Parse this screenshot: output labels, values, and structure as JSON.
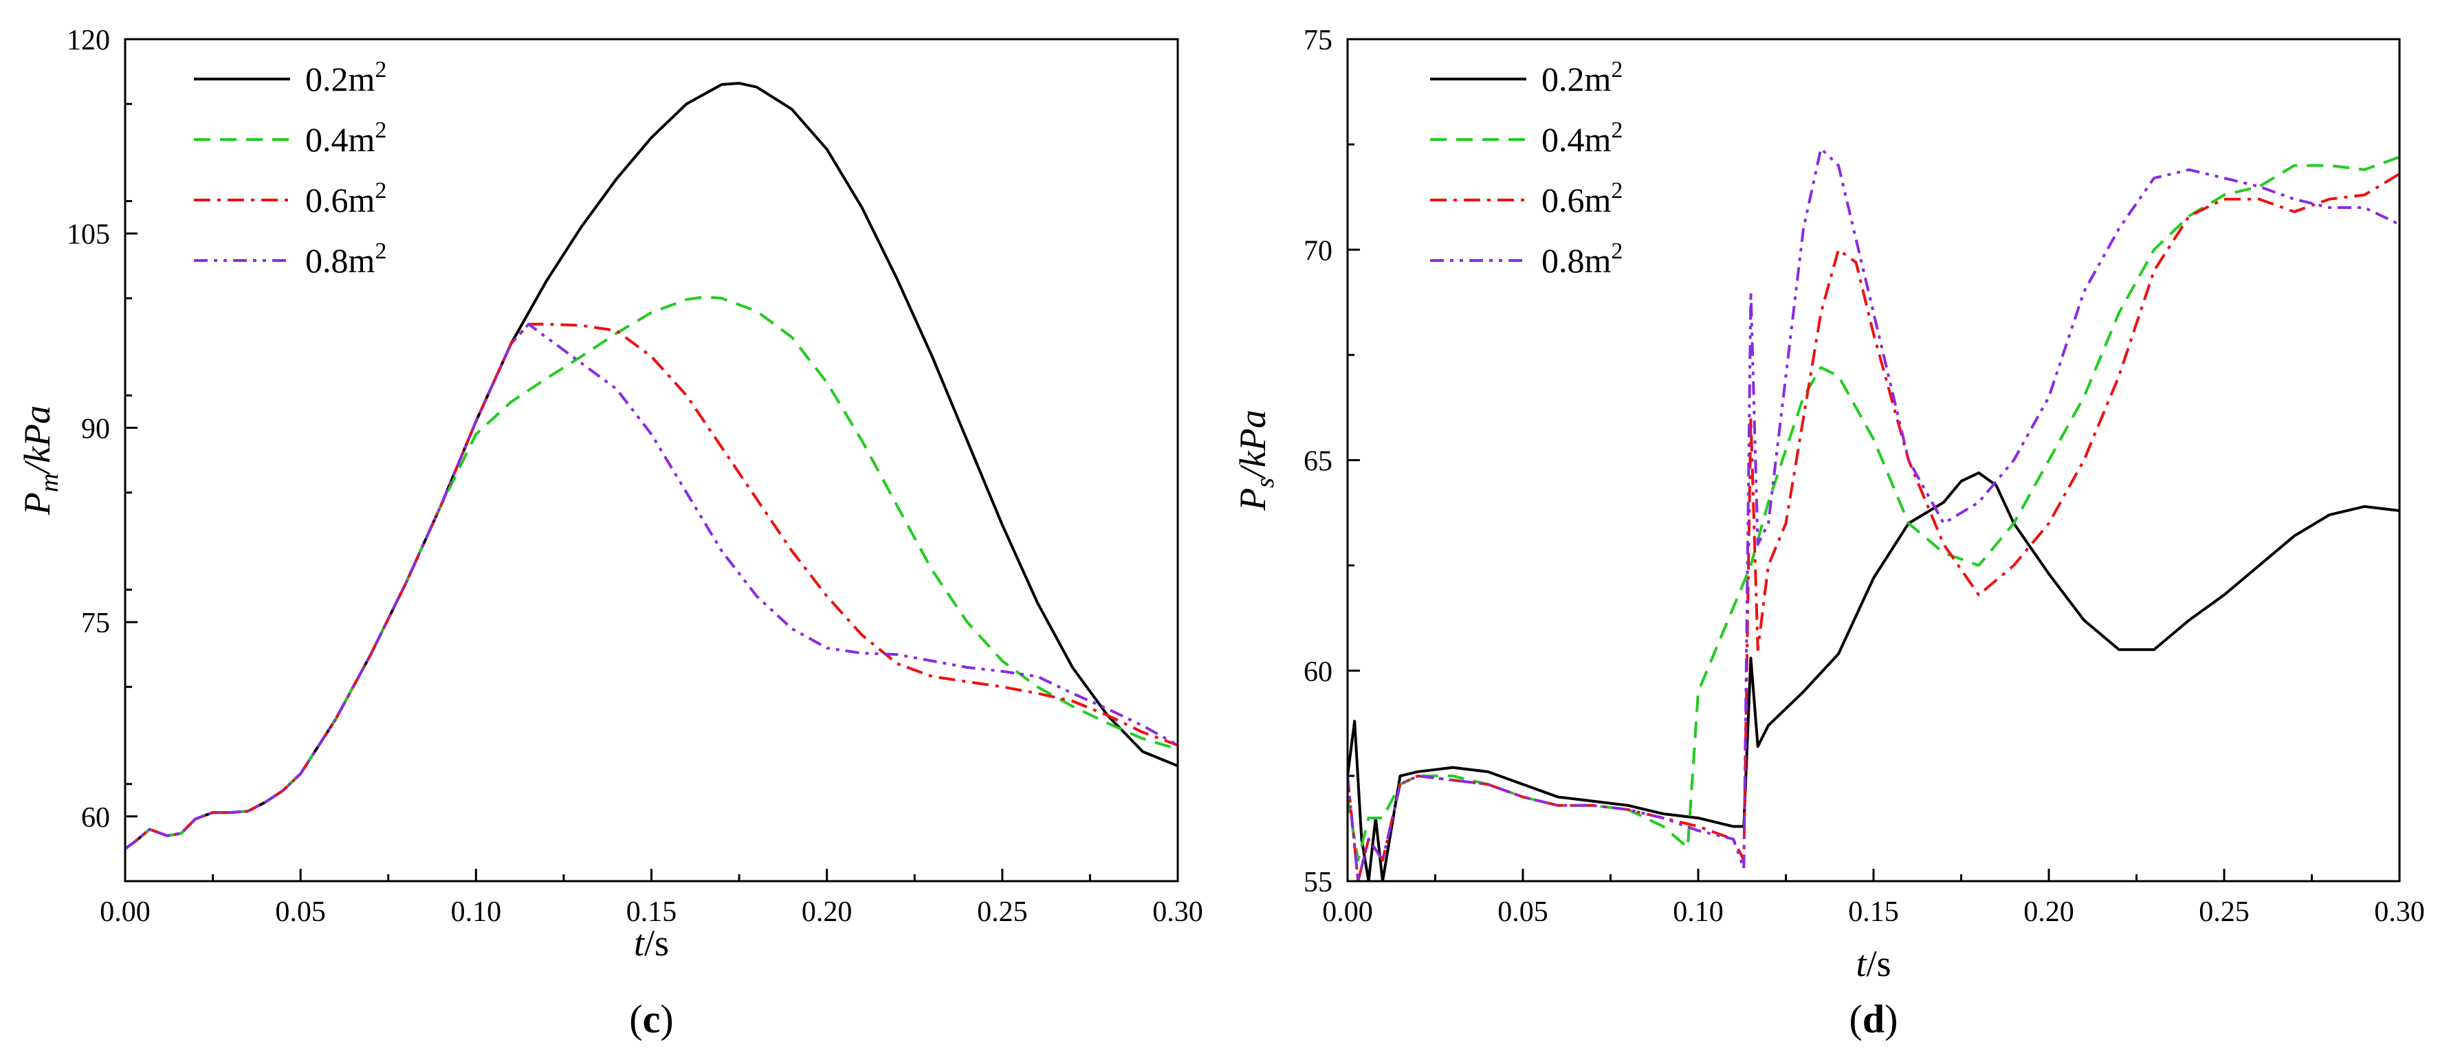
{
  "chart_data": [
    {
      "panel": "(c)",
      "panel_letter": "c",
      "type": "line",
      "xlabel_var": "t",
      "xlabel_unit": "/s",
      "ylabel_main": "P",
      "ylabel_sub": "m",
      "ylabel_unit": "/kPa",
      "xlim": [
        0,
        0.3
      ],
      "ylim": [
        55,
        120
      ],
      "xticks": [
        0.0,
        0.05,
        0.1,
        0.15,
        0.2,
        0.25,
        0.3
      ],
      "xtick_labels": [
        "0.00",
        "0.05",
        "0.10",
        "0.15",
        "0.20",
        "0.25",
        "0.30"
      ],
      "yticks": [
        60,
        75,
        90,
        105,
        120
      ],
      "ytick_labels": [
        "60",
        "75",
        "90",
        "105",
        "120"
      ],
      "legend": "top-left",
      "series": [
        {
          "name": "0.2m",
          "sup": "2",
          "color": "#000000",
          "dash": "solid",
          "x": [
            0,
            0.003,
            0.007,
            0.012,
            0.016,
            0.02,
            0.025,
            0.03,
            0.035,
            0.04,
            0.045,
            0.05,
            0.06,
            0.07,
            0.08,
            0.09,
            0.1,
            0.11,
            0.12,
            0.13,
            0.14,
            0.15,
            0.16,
            0.17,
            0.175,
            0.18,
            0.19,
            0.2,
            0.21,
            0.22,
            0.23,
            0.24,
            0.25,
            0.26,
            0.27,
            0.28,
            0.29,
            0.3
          ],
          "y": [
            57.5,
            58.1,
            59.0,
            58.5,
            58.7,
            59.8,
            60.3,
            60.3,
            60.4,
            61.1,
            62.0,
            63.3,
            67.5,
            72.5,
            78.0,
            84.0,
            90.5,
            96.5,
            101.3,
            105.5,
            109.2,
            112.4,
            115.0,
            116.5,
            116.6,
            116.3,
            114.6,
            111.5,
            107.0,
            101.5,
            95.5,
            89.0,
            82.5,
            76.5,
            71.5,
            67.8,
            65.0,
            63.9
          ]
        },
        {
          "name": "0.4m",
          "sup": "2",
          "color": "#22cc22",
          "dash": "dashed",
          "x": [
            0,
            0.003,
            0.007,
            0.012,
            0.016,
            0.02,
            0.025,
            0.03,
            0.035,
            0.04,
            0.045,
            0.05,
            0.06,
            0.07,
            0.08,
            0.09,
            0.1,
            0.11,
            0.12,
            0.13,
            0.14,
            0.15,
            0.16,
            0.165,
            0.17,
            0.18,
            0.19,
            0.2,
            0.21,
            0.22,
            0.23,
            0.24,
            0.25,
            0.26,
            0.27,
            0.28,
            0.29,
            0.3
          ],
          "y": [
            57.5,
            58.1,
            59.0,
            58.5,
            58.7,
            59.8,
            60.3,
            60.3,
            60.4,
            61.1,
            62.0,
            63.3,
            67.5,
            72.5,
            78.0,
            84.0,
            89.5,
            92.0,
            93.8,
            95.5,
            97.3,
            98.9,
            99.9,
            100.1,
            100.0,
            99.0,
            97.0,
            93.5,
            89.0,
            84.0,
            79.0,
            75.0,
            72.0,
            70.0,
            68.5,
            67.2,
            66.0,
            65.2
          ]
        },
        {
          "name": "0.6m",
          "sup": "2",
          "color": "#ee1111",
          "dash": "dashdot",
          "x": [
            0,
            0.003,
            0.007,
            0.012,
            0.016,
            0.02,
            0.025,
            0.03,
            0.035,
            0.04,
            0.045,
            0.05,
            0.06,
            0.07,
            0.08,
            0.09,
            0.1,
            0.11,
            0.115,
            0.12,
            0.13,
            0.14,
            0.15,
            0.16,
            0.17,
            0.18,
            0.19,
            0.2,
            0.21,
            0.22,
            0.23,
            0.24,
            0.25,
            0.26,
            0.27,
            0.28,
            0.29,
            0.3
          ],
          "y": [
            57.5,
            58.1,
            59.0,
            58.5,
            58.7,
            59.8,
            60.3,
            60.3,
            60.4,
            61.1,
            62.0,
            63.3,
            67.5,
            72.5,
            78.0,
            84.0,
            90.5,
            96.5,
            98.0,
            98.0,
            97.9,
            97.5,
            95.5,
            92.5,
            88.5,
            84.5,
            80.5,
            77.0,
            74.0,
            71.8,
            70.8,
            70.4,
            70.0,
            69.5,
            68.9,
            67.8,
            66.5,
            65.5
          ]
        },
        {
          "name": "0.8m",
          "sup": "2",
          "color": "#8a2be2",
          "dash": "dashdotdot",
          "x": [
            0,
            0.003,
            0.007,
            0.012,
            0.016,
            0.02,
            0.025,
            0.03,
            0.035,
            0.04,
            0.045,
            0.05,
            0.06,
            0.07,
            0.08,
            0.09,
            0.1,
            0.11,
            0.115,
            0.12,
            0.13,
            0.14,
            0.15,
            0.16,
            0.17,
            0.18,
            0.19,
            0.2,
            0.21,
            0.22,
            0.23,
            0.24,
            0.25,
            0.26,
            0.27,
            0.28,
            0.29,
            0.3
          ],
          "y": [
            57.5,
            58.1,
            59.0,
            58.5,
            58.7,
            59.8,
            60.3,
            60.3,
            60.4,
            61.1,
            62.0,
            63.3,
            67.5,
            72.5,
            78.0,
            84.0,
            90.5,
            96.5,
            98.0,
            97.0,
            95.0,
            93.0,
            89.5,
            85.0,
            80.5,
            77.0,
            74.5,
            73.0,
            72.6,
            72.5,
            72.0,
            71.5,
            71.2,
            70.8,
            69.5,
            68.3,
            67.0,
            65.5
          ]
        }
      ]
    },
    {
      "panel": "(d)",
      "panel_letter": "d",
      "type": "line",
      "xlabel_var": "t",
      "xlabel_unit": "/s",
      "ylabel_main": "P",
      "ylabel_sub": "s",
      "ylabel_unit": "/kPa",
      "xlim": [
        0,
        0.3
      ],
      "ylim": [
        55,
        75
      ],
      "xticks": [
        0.0,
        0.05,
        0.1,
        0.15,
        0.2,
        0.25,
        0.3
      ],
      "xtick_labels": [
        "0.00",
        "0.05",
        "0.10",
        "0.15",
        "0.20",
        "0.25",
        "0.30"
      ],
      "yticks": [
        55,
        60,
        65,
        70,
        75
      ],
      "ytick_labels": [
        "55",
        "60",
        "65",
        "70",
        "75"
      ],
      "legend": "top-left",
      "series": [
        {
          "name": "0.2m",
          "sup": "2",
          "color": "#000000",
          "dash": "solid",
          "x": [
            0,
            0.002,
            0.004,
            0.006,
            0.008,
            0.01,
            0.012,
            0.015,
            0.02,
            0.03,
            0.04,
            0.05,
            0.06,
            0.07,
            0.08,
            0.09,
            0.1,
            0.11,
            0.113,
            0.115,
            0.117,
            0.12,
            0.125,
            0.13,
            0.14,
            0.15,
            0.16,
            0.17,
            0.175,
            0.18,
            0.185,
            0.19,
            0.2,
            0.21,
            0.22,
            0.23,
            0.24,
            0.25,
            0.26,
            0.27,
            0.28,
            0.29,
            0.3
          ],
          "y": [
            57.5,
            58.8,
            56.0,
            55.0,
            56.5,
            55.0,
            56.0,
            57.5,
            57.6,
            57.7,
            57.6,
            57.3,
            57.0,
            56.9,
            56.8,
            56.6,
            56.5,
            56.3,
            56.3,
            60.3,
            58.2,
            58.7,
            59.1,
            59.5,
            60.4,
            62.2,
            63.5,
            64.0,
            64.5,
            64.7,
            64.4,
            63.5,
            62.3,
            61.2,
            60.5,
            60.5,
            61.2,
            61.8,
            62.5,
            63.2,
            63.7,
            63.9,
            63.8
          ]
        },
        {
          "name": "0.4m",
          "sup": "2",
          "color": "#22cc22",
          "dash": "dashed",
          "x": [
            0,
            0.003,
            0.006,
            0.01,
            0.015,
            0.02,
            0.03,
            0.04,
            0.05,
            0.06,
            0.07,
            0.08,
            0.09,
            0.097,
            0.1,
            0.105,
            0.11,
            0.115,
            0.12,
            0.13,
            0.135,
            0.14,
            0.15,
            0.16,
            0.17,
            0.18,
            0.19,
            0.2,
            0.21,
            0.22,
            0.23,
            0.24,
            0.25,
            0.26,
            0.27,
            0.28,
            0.29,
            0.3
          ],
          "y": [
            57.0,
            55.5,
            56.5,
            56.5,
            57.3,
            57.5,
            57.5,
            57.3,
            57.0,
            56.8,
            56.8,
            56.7,
            56.3,
            55.8,
            59.5,
            60.5,
            61.5,
            62.5,
            64.0,
            66.5,
            67.2,
            67.0,
            65.5,
            63.5,
            62.8,
            62.5,
            63.5,
            65.0,
            66.5,
            68.5,
            70.0,
            70.8,
            71.3,
            71.5,
            72.0,
            72.0,
            71.9,
            72.2
          ]
        },
        {
          "name": "0.6m",
          "sup": "2",
          "color": "#ee1111",
          "dash": "dashdot",
          "x": [
            0,
            0.003,
            0.006,
            0.01,
            0.015,
            0.02,
            0.03,
            0.04,
            0.05,
            0.06,
            0.07,
            0.08,
            0.09,
            0.1,
            0.11,
            0.113,
            0.115,
            0.117,
            0.12,
            0.125,
            0.13,
            0.135,
            0.14,
            0.145,
            0.15,
            0.16,
            0.17,
            0.18,
            0.19,
            0.2,
            0.21,
            0.22,
            0.23,
            0.24,
            0.25,
            0.26,
            0.27,
            0.28,
            0.29,
            0.3
          ],
          "y": [
            57.5,
            55.0,
            56.0,
            55.5,
            57.3,
            57.5,
            57.4,
            57.3,
            57.0,
            56.8,
            56.8,
            56.7,
            56.5,
            56.3,
            56.0,
            55.5,
            66.0,
            60.5,
            62.5,
            63.5,
            66.0,
            68.5,
            70.0,
            69.7,
            68.0,
            65.0,
            63.0,
            61.8,
            62.5,
            63.5,
            65.0,
            67.0,
            69.5,
            70.8,
            71.2,
            71.2,
            70.9,
            71.2,
            71.3,
            71.8
          ]
        },
        {
          "name": "0.8m",
          "sup": "2",
          "color": "#8a2be2",
          "dash": "dashdotdot",
          "x": [
            0,
            0.003,
            0.006,
            0.01,
            0.015,
            0.02,
            0.03,
            0.04,
            0.05,
            0.06,
            0.07,
            0.08,
            0.09,
            0.1,
            0.11,
            0.113,
            0.115,
            0.117,
            0.12,
            0.125,
            0.13,
            0.135,
            0.14,
            0.15,
            0.16,
            0.17,
            0.18,
            0.19,
            0.2,
            0.21,
            0.22,
            0.23,
            0.24,
            0.25,
            0.26,
            0.27,
            0.28,
            0.29,
            0.3
          ],
          "y": [
            57.5,
            55.0,
            56.0,
            55.5,
            57.3,
            57.5,
            57.4,
            57.3,
            57.0,
            56.8,
            56.8,
            56.7,
            56.5,
            56.2,
            56.0,
            55.3,
            69.0,
            63.0,
            63.5,
            67.0,
            70.5,
            72.4,
            72.0,
            68.5,
            65.0,
            63.5,
            64.0,
            65.0,
            66.5,
            69.0,
            70.5,
            71.7,
            71.9,
            71.7,
            71.5,
            71.2,
            71.0,
            71.0,
            70.6
          ]
        }
      ]
    }
  ]
}
